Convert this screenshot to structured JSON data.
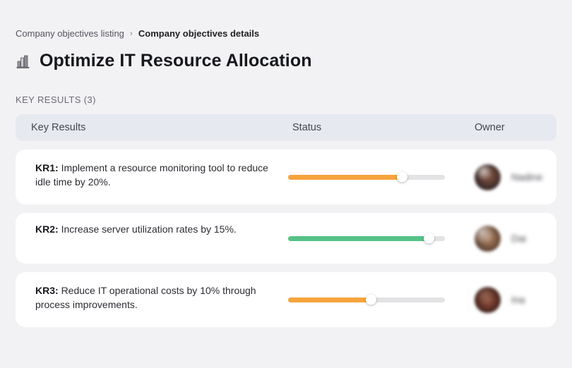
{
  "breadcrumb": {
    "separator": "›",
    "items": [
      {
        "label": "Company objectives listing"
      },
      {
        "label": "Company objectives details"
      }
    ]
  },
  "page": {
    "title": "Optimize IT Resource Allocation",
    "title_icon": "building-bar-chart-icon"
  },
  "section": {
    "label": "KEY RESULTS (3)"
  },
  "table": {
    "headers": {
      "key_results": "Key Results",
      "status": "Status",
      "owner": "Owner"
    },
    "rows": [
      {
        "kr_label": "KR1:",
        "kr_text": "Implement a resource monitoring tool to reduce idle time by 20%.",
        "progress_percent": 73,
        "progress_color": "#f6a43c",
        "owner_name": "Nadine"
      },
      {
        "kr_label": "KR2:",
        "kr_text": "Increase server utilization rates by 15%.",
        "progress_percent": 90,
        "progress_color": "#55c287",
        "owner_name": "Dai"
      },
      {
        "kr_label": "KR3:",
        "kr_text": "Reduce IT operational costs by 10% through process improvements.",
        "progress_percent": 53,
        "progress_color": "#f6a43c",
        "owner_name": "Ina"
      }
    ]
  },
  "colors": {
    "background": "#f2f2f4",
    "card": "#ffffff",
    "header_band": "#e6e9f0",
    "track": "#e3e3e5",
    "orange": "#f6a43c",
    "green": "#55c287"
  }
}
